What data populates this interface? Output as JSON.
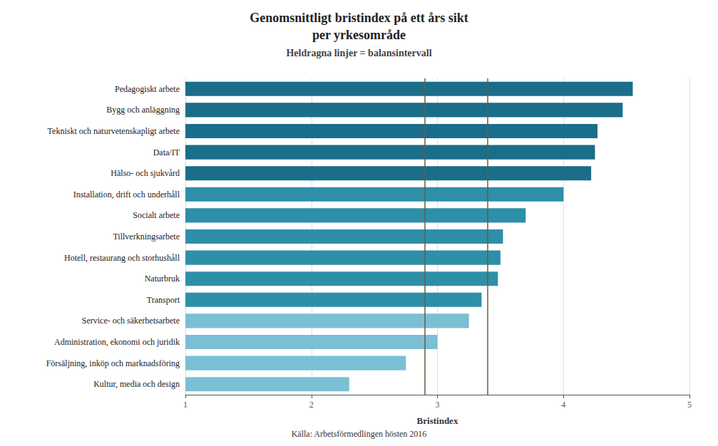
{
  "chart_data": {
    "type": "bar",
    "orientation": "horizontal",
    "title": "Genomsnittligt bristindex på ett års sikt\nper yrkesområde",
    "subtitle": "Heldragna linjer = balansintervall",
    "caption": "Källa: Arbetsförmedlingen hösten 2016",
    "xlabel": "Bristindex",
    "categories": [
      "Pedagogiskt arbete",
      "Bygg och anläggning",
      "Tekniskt och naturvetenskapligt arbete",
      "Data/IT",
      "Hälso- och sjukvård",
      "Installation, drift och underhåll",
      "Socialt arbete",
      "Tillverkningsarbete",
      "Hotell, restaurang och storhushåll",
      "Naturbruk",
      "Transport",
      "Service- och säkerhetsarbete",
      "Administration, ekonomi och juridik",
      "Försäljning, inköp och marknadsföring",
      "Kultur, media och design"
    ],
    "values": [
      4.55,
      4.47,
      4.27,
      4.25,
      4.22,
      4.0,
      3.7,
      3.52,
      3.5,
      3.48,
      3.35,
      3.25,
      3.0,
      2.75,
      2.3
    ],
    "colors": [
      "#1a6e8a",
      "#1a6e8a",
      "#1a6e8a",
      "#1a6e8a",
      "#1a6e8a",
      "#2e8fa8",
      "#2e8fa8",
      "#2e8fa8",
      "#2e8fa8",
      "#2e8fa8",
      "#2e8fa8",
      "#7bbfd4",
      "#7bbfd4",
      "#7bbfd4",
      "#7bbfd4"
    ],
    "reference_lines": [
      {
        "value": 2.9,
        "color": "#6b5b45"
      },
      {
        "value": 3.4,
        "color": "#6b5b45"
      }
    ],
    "xlim": [
      1,
      5
    ],
    "xticks": [
      1,
      2,
      3,
      4,
      5
    ],
    "grid": true
  }
}
